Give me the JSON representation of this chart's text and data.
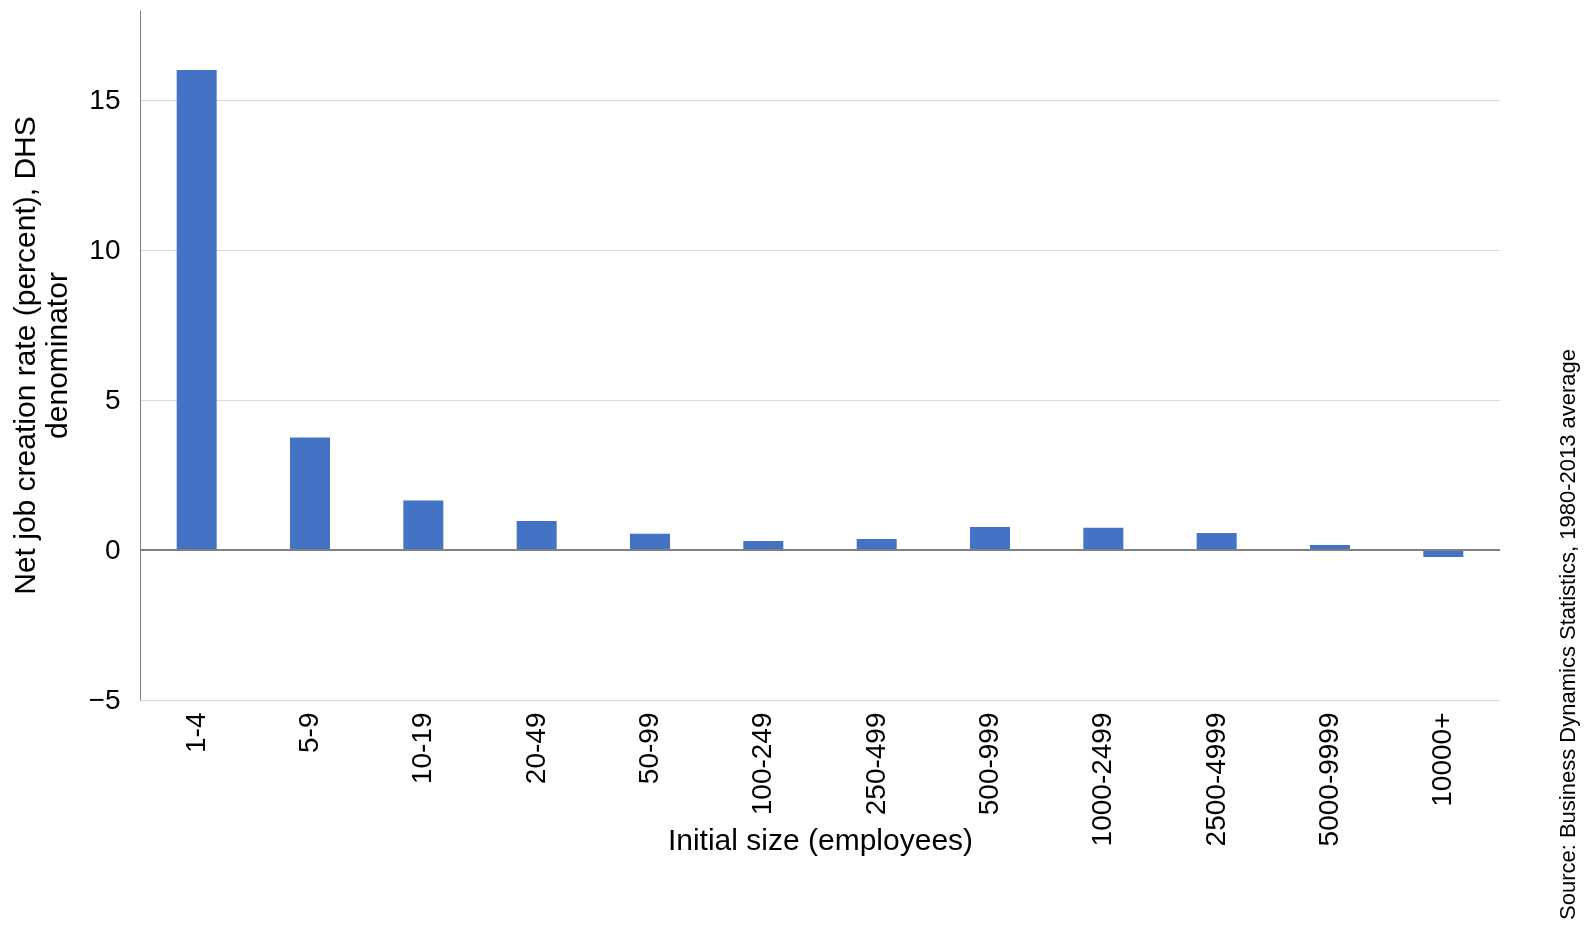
{
  "chart_data": {
    "type": "bar",
    "xlabel": "Initial size (employees)",
    "ylabel": "Net job creation rate (percent), DHS denominator",
    "categories": [
      "1-4",
      "5-9",
      "10-19",
      "20-49",
      "50-99",
      "100-249",
      "250-499",
      "500-999",
      "1000-2499",
      "2500-4999",
      "5000-9999",
      "10000+"
    ],
    "values": [
      16.0,
      3.75,
      1.65,
      0.97,
      0.54,
      0.3,
      0.37,
      0.77,
      0.74,
      0.57,
      0.17,
      -0.23
    ],
    "color": "#4472c4",
    "ylim": [
      -5,
      18
    ],
    "yticks": [
      -5,
      0,
      5,
      10,
      15
    ],
    "grid": "y",
    "annotations": [
      "Source: Business Dynamics Statistics, 1980-2013 average"
    ]
  }
}
